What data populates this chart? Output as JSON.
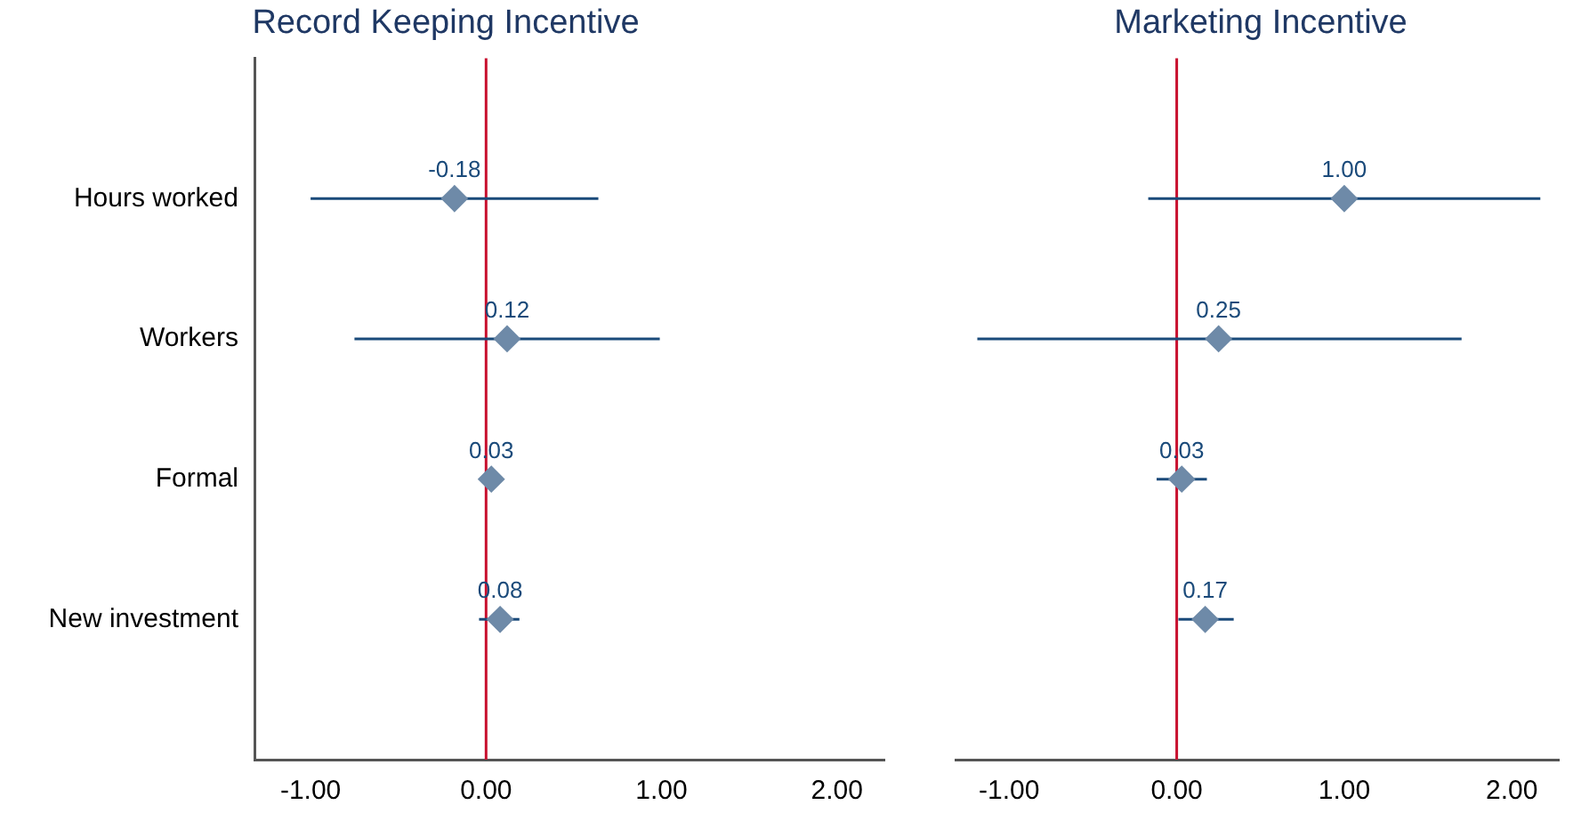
{
  "chart_data": [
    {
      "type": "scatter",
      "title": "Record Keeping Incentive",
      "categories": [
        "Hours worked",
        "Workers",
        "Formal",
        "New investment"
      ],
      "series": [
        {
          "color": "#6e8aa8",
          "values": [
            -0.18,
            0.12,
            0.03,
            0.08
          ],
          "errors": [
            [
              -1.0,
              0.64
            ],
            [
              -0.75,
              0.99
            ],
            null,
            [
              -0.04,
              0.19
            ]
          ],
          "value_labels": [
            "-0.18",
            "0.12",
            "0.03",
            "0.08"
          ]
        }
      ],
      "orientation": "horizontal",
      "xlim": [
        -1.32,
        2.27
      ],
      "xticks": [
        {
          "value": -1,
          "label": "-1.00"
        },
        {
          "value": 0,
          "label": "0.00"
        },
        {
          "value": 1,
          "label": "1.00"
        },
        {
          "value": 2,
          "label": "2.00"
        }
      ],
      "ref_lines": [
        {
          "axis": "x",
          "value": 0,
          "color": "#c8102e"
        }
      ],
      "marker": "diamond",
      "grid": false,
      "legend": false
    },
    {
      "type": "scatter",
      "title": "Marketing Incentive",
      "categories": [
        null,
        null,
        null,
        null
      ],
      "series": [
        {
          "color": "#6e8aa8",
          "values": [
            1.0,
            0.25,
            0.03,
            0.17
          ],
          "errors": [
            [
              -0.17,
              2.17
            ],
            [
              -1.19,
              1.7
            ],
            [
              -0.12,
              0.18
            ],
            [
              0.01,
              0.34
            ]
          ],
          "value_labels": [
            "1.00",
            "0.25",
            "0.03",
            "0.17"
          ]
        }
      ],
      "orientation": "horizontal",
      "xlim": [
        -1.32,
        2.28
      ],
      "xticks": [
        {
          "value": -1,
          "label": "-1.00"
        },
        {
          "value": 0,
          "label": "0.00"
        },
        {
          "value": 1,
          "label": "1.00"
        },
        {
          "value": 2,
          "label": "2.00"
        }
      ],
      "ref_lines": [
        {
          "axis": "x",
          "value": 0,
          "color": "#c8102e"
        }
      ],
      "marker": "diamond",
      "grid": false,
      "legend": false,
      "tick_labels": "x"
    }
  ]
}
